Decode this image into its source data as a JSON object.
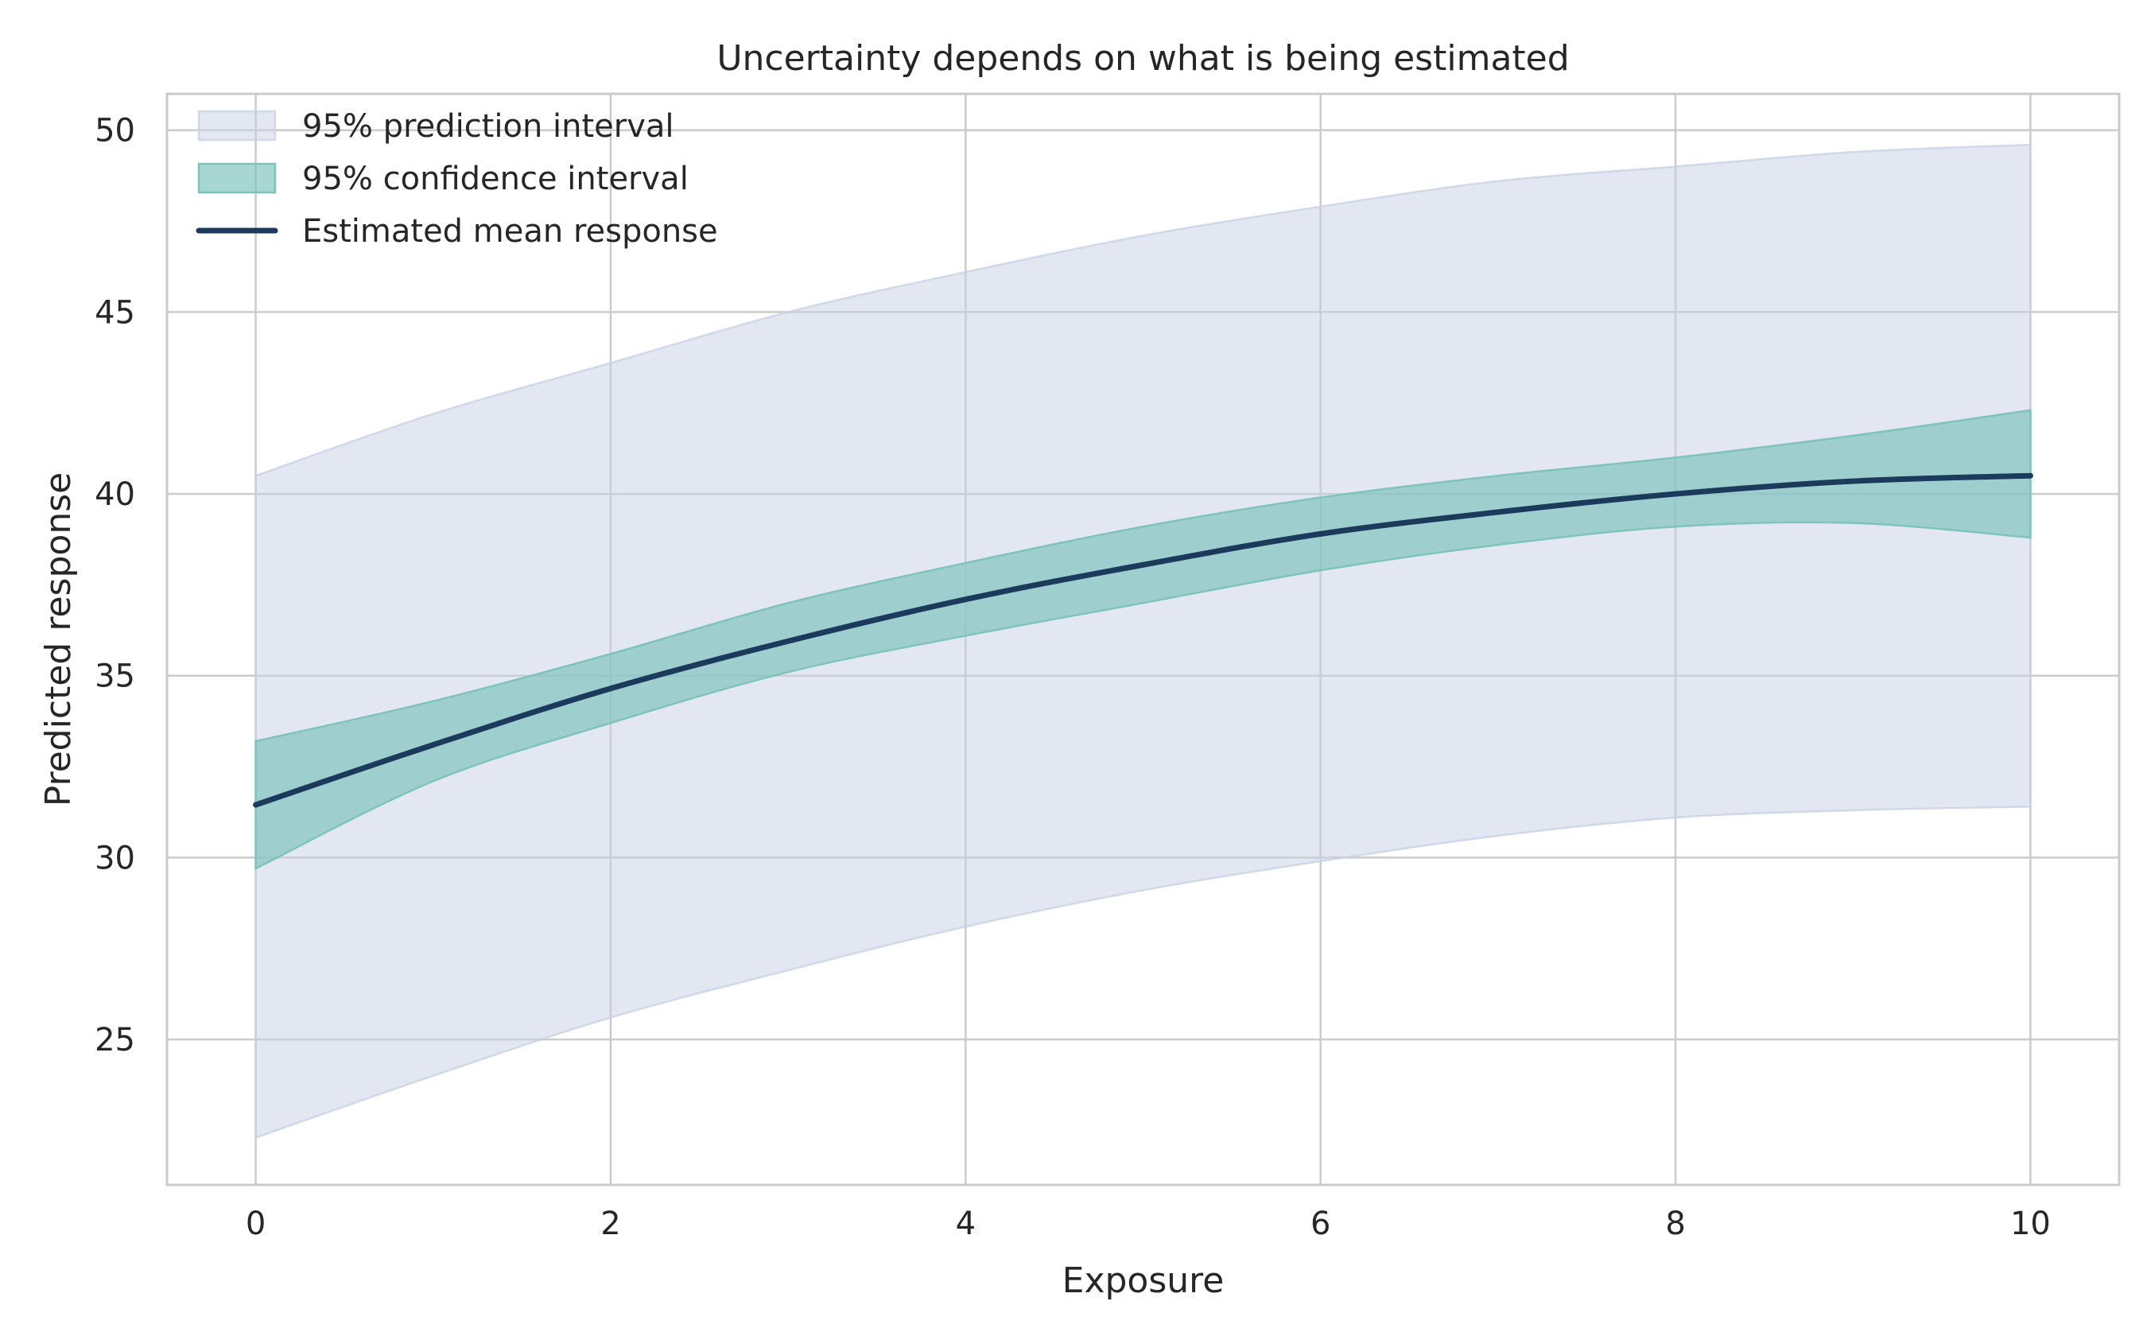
{
  "chart_data": {
    "type": "area",
    "title": "Uncertainty depends on what is being estimated",
    "xlabel": "Exposure",
    "ylabel": "Predicted response",
    "xlim": [
      -0.5,
      10.5
    ],
    "ylim": [
      21.0,
      51.0
    ],
    "xticks": [
      0,
      2,
      4,
      6,
      8,
      10
    ],
    "yticks": [
      25,
      30,
      35,
      40,
      45,
      50
    ],
    "grid": true,
    "legend_position": "top-left",
    "x": [
      0,
      1,
      2,
      3,
      4,
      5,
      6,
      7,
      8,
      9,
      10
    ],
    "series": [
      {
        "name": "95% prediction interval",
        "kind": "band",
        "color": "#c6d0e6",
        "lower": [
          22.3,
          24.0,
          25.6,
          26.9,
          28.1,
          29.1,
          29.9,
          30.6,
          31.1,
          31.3,
          31.4
        ],
        "upper": [
          40.5,
          42.2,
          43.6,
          45.0,
          46.1,
          47.1,
          47.9,
          48.6,
          49.0,
          49.4,
          49.6
        ]
      },
      {
        "name": "95% confidence interval",
        "kind": "band",
        "color": "#7fc3bd",
        "lower": [
          29.7,
          32.1,
          33.7,
          35.1,
          36.1,
          37.0,
          37.9,
          38.6,
          39.1,
          39.2,
          38.8
        ],
        "upper": [
          33.2,
          34.3,
          35.6,
          37.0,
          38.1,
          39.1,
          39.9,
          40.5,
          41.0,
          41.6,
          42.3
        ]
      },
      {
        "name": "Estimated mean response",
        "kind": "line",
        "color": "#1b3a5c",
        "values": [
          31.45,
          33.1,
          34.65,
          35.95,
          37.1,
          38.05,
          38.9,
          39.5,
          40.0,
          40.35,
          40.5
        ]
      }
    ]
  }
}
